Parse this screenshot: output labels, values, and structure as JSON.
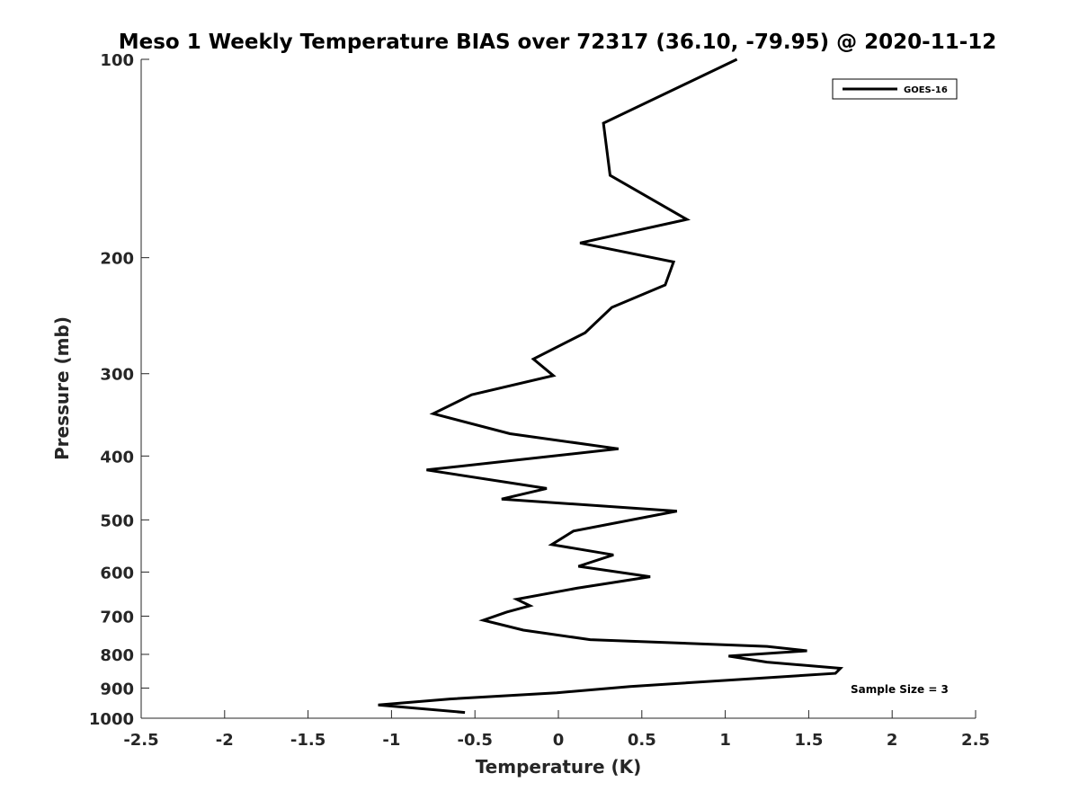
{
  "chart_data": {
    "type": "line",
    "title": "Meso 1 Weekly Temperature BIAS over 72317 (36.10, -79.95) @ 2020-11-12",
    "xlabel": "Temperature (K)",
    "ylabel": "Pressure (mb)",
    "xlim": [
      -2.5,
      2.5
    ],
    "ylim": [
      100,
      1000
    ],
    "y_scale": "log",
    "y_reversed": true,
    "grid": false,
    "legend_position": "top-right",
    "x_ticks": [
      "-2.5",
      "-2",
      "-1.5",
      "-1",
      "-0.5",
      "0",
      "0.5",
      "1",
      "1.5",
      "2",
      "2.5"
    ],
    "x_tick_values": [
      -2.5,
      -2,
      -1.5,
      -1,
      -0.5,
      0,
      0.5,
      1,
      1.5,
      2,
      2.5
    ],
    "y_ticks": [
      "100",
      "200",
      "300",
      "400",
      "500",
      "600",
      "700",
      "800",
      "900",
      "1000"
    ],
    "y_tick_values": [
      100,
      200,
      300,
      400,
      500,
      600,
      700,
      800,
      900,
      1000
    ],
    "annotation": "Sample Size = 3",
    "series": [
      {
        "name": "GOES-16",
        "color": "#000000",
        "points": [
          [
            1.07,
            100
          ],
          [
            0.27,
            125
          ],
          [
            0.31,
            150
          ],
          [
            0.77,
            175
          ],
          [
            0.13,
            190
          ],
          [
            0.69,
            203
          ],
          [
            0.64,
            220
          ],
          [
            0.32,
            238
          ],
          [
            0.16,
            260
          ],
          [
            -0.15,
            285
          ],
          [
            -0.03,
            302
          ],
          [
            -0.52,
            323
          ],
          [
            -0.75,
            345
          ],
          [
            -0.29,
            370
          ],
          [
            0.36,
            390
          ],
          [
            -0.79,
            420
          ],
          [
            -0.07,
            448
          ],
          [
            -0.34,
            465
          ],
          [
            0.71,
            485
          ],
          [
            0.09,
            520
          ],
          [
            -0.04,
            545
          ],
          [
            0.33,
            565
          ],
          [
            0.12,
            588
          ],
          [
            0.55,
            610
          ],
          [
            0.11,
            635
          ],
          [
            -0.25,
            660
          ],
          [
            -0.17,
            675
          ],
          [
            -0.31,
            690
          ],
          [
            -0.45,
            710
          ],
          [
            -0.21,
            735
          ],
          [
            0.19,
            760
          ],
          [
            1.25,
            778
          ],
          [
            1.49,
            790
          ],
          [
            1.02,
            805
          ],
          [
            1.25,
            822
          ],
          [
            1.69,
            840
          ],
          [
            1.66,
            855
          ],
          [
            0.43,
            895
          ],
          [
            -0.01,
            915
          ],
          [
            -0.65,
            935
          ],
          [
            -1.08,
            955
          ],
          [
            -0.56,
            980
          ]
        ]
      }
    ]
  }
}
